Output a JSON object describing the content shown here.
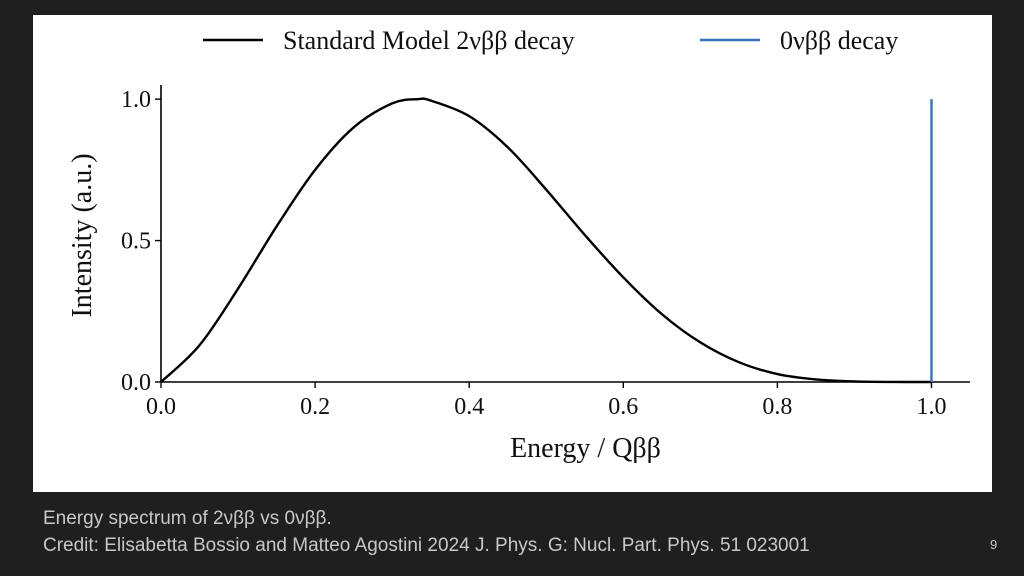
{
  "chart_data": {
    "type": "line",
    "title": "",
    "xlabel": "Energy / Qββ",
    "ylabel": "Intensity (a.u.)",
    "xlim": [
      0,
      1.05
    ],
    "ylim": [
      0,
      1.05
    ],
    "xticks": [
      0.0,
      0.2,
      0.4,
      0.6,
      0.8,
      1.0
    ],
    "xtick_labels": [
      "0.0",
      "0.2",
      "0.4",
      "0.6",
      "0.8",
      "1.0"
    ],
    "yticks": [
      0.0,
      0.5,
      1.0
    ],
    "ytick_labels": [
      "0.0",
      "0.5",
      "1.0"
    ],
    "grid": false,
    "legend_position": "top",
    "series": [
      {
        "name": "Standard Model 2νββ decay",
        "color": "#000000",
        "x": [
          0.0,
          0.05,
          0.1,
          0.15,
          0.2,
          0.25,
          0.3,
          0.333,
          0.35,
          0.4,
          0.45,
          0.5,
          0.55,
          0.6,
          0.65,
          0.7,
          0.75,
          0.8,
          0.85,
          0.9,
          0.95,
          1.0
        ],
        "y": [
          0.0,
          0.13,
          0.33,
          0.55,
          0.75,
          0.9,
          0.985,
          1.0,
          0.995,
          0.94,
          0.83,
          0.68,
          0.52,
          0.37,
          0.24,
          0.14,
          0.07,
          0.028,
          0.009,
          0.002,
          0.0002,
          0.0
        ]
      },
      {
        "name": "0νββ decay",
        "color": "#3a6fbf",
        "x": [
          1.0,
          1.0
        ],
        "y": [
          0.0,
          1.0
        ]
      }
    ]
  },
  "caption": {
    "line1": "Energy spectrum of 2νββ vs 0νββ.",
    "line2": "Credit:  Elisabetta Bossio and Matteo Agostini 2024 J. Phys. G: Nucl. Part. Phys. 51 023001"
  },
  "slide_number": "9"
}
